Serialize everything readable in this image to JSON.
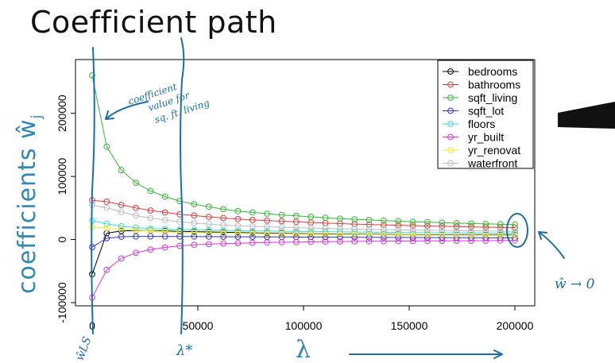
{
  "title": "Coefficient path",
  "chart_data": {
    "type": "line",
    "xlabel": "λ",
    "ylabel": "coefficients ŵ",
    "ylabel_sub": "j",
    "xlim": [
      0,
      200000
    ],
    "ylim": [
      -100000,
      260000
    ],
    "xticks": [
      0,
      50000,
      100000,
      150000,
      200000
    ],
    "xtick_labels": [
      "0",
      "50000",
      "100000",
      "150000",
      "200000"
    ],
    "yticks": [
      -100000,
      0,
      100000,
      200000
    ],
    "ytick_labels": [
      "-100000",
      "0",
      "100000",
      "200000"
    ],
    "grid": false,
    "legend_position": "top-right",
    "x": [
      0,
      6897,
      13793,
      20690,
      27586,
      34483,
      41379,
      48276,
      55172,
      62069,
      68966,
      75862,
      82759,
      89655,
      96552,
      103448,
      110345,
      117241,
      124138,
      131034,
      137931,
      144828,
      151724,
      158621,
      165517,
      172414,
      179310,
      186207,
      193103,
      200000
    ],
    "series": [
      {
        "name": "bedrooms",
        "color": "#000000",
        "values": [
          -55000,
          10000,
          13500,
          14200,
          14000,
          13500,
          13000,
          12500,
          12000,
          11500,
          11000,
          10600,
          10200,
          9800,
          9500,
          9200,
          9000,
          8700,
          8500,
          8300,
          8100,
          7900,
          7800,
          7600,
          7500,
          7400,
          7300,
          7200,
          7100,
          7000
        ]
      },
      {
        "name": "bathrooms",
        "color": "#dd3c3c",
        "values": [
          62000,
          60000,
          55000,
          50000,
          46000,
          43000,
          40000,
          38000,
          36000,
          34000,
          32500,
          31000,
          30000,
          29000,
          28000,
          27000,
          26000,
          25200,
          24500,
          23800,
          23200,
          22600,
          22000,
          21500,
          21000,
          20500,
          20000,
          19600,
          19200,
          18800
        ]
      },
      {
        "name": "sqft_living",
        "color": "#33bb33",
        "values": [
          260000,
          147000,
          110000,
          90000,
          77000,
          68000,
          61000,
          56000,
          52000,
          48000,
          45000,
          43000,
          41000,
          39000,
          37500,
          36000,
          34500,
          33000,
          32000,
          31000,
          30000,
          29000,
          28200,
          27500,
          26800,
          26000,
          25400,
          24800,
          24200,
          23700
        ]
      },
      {
        "name": "sqft_lot",
        "color": "#3333cc",
        "values": [
          -12000,
          2000,
          4500,
          5000,
          5000,
          4900,
          4800,
          4700,
          4600,
          4500,
          4400,
          4300,
          4200,
          4100,
          4000,
          3900,
          3800,
          3700,
          3600,
          3500,
          3400,
          3300,
          3200,
          3100,
          3000,
          2900,
          2800,
          2700,
          2600,
          2500
        ]
      },
      {
        "name": "floors",
        "color": "#33dddd",
        "values": [
          30000,
          25000,
          21000,
          19000,
          17500,
          16500,
          15800,
          15200,
          14800,
          14400,
          14000,
          13700,
          13400,
          13100,
          12800,
          12500,
          12300,
          12100,
          11900,
          11700,
          11500,
          11300,
          11100,
          10900,
          10700,
          10500,
          10300,
          10100,
          9900,
          9700
        ]
      },
      {
        "name": "yr_built",
        "color": "#dd33dd",
        "values": [
          -92000,
          -48000,
          -30000,
          -21000,
          -16000,
          -12500,
          -10000,
          -8500,
          -7300,
          -6500,
          -5800,
          -5200,
          -4700,
          -4300,
          -4000,
          -3700,
          -3400,
          -3200,
          -3000,
          -2800,
          -2600,
          -2400,
          -2300,
          -2200,
          -2100,
          -2000,
          -1900,
          -1800,
          -1700,
          -1600
        ]
      },
      {
        "name": "yr_renovat",
        "color": "#eeee22",
        "values": [
          20000,
          18000,
          16000,
          14500,
          13500,
          12500,
          11800,
          11200,
          10700,
          10300,
          10000,
          9600,
          9300,
          9000,
          8800,
          8500,
          8300,
          8100,
          7900,
          7700,
          7500,
          7300,
          7200,
          7000,
          6900,
          6800,
          6700,
          6600,
          6500,
          6400
        ]
      },
      {
        "name": "waterfront",
        "color": "#bbbbbb",
        "values": [
          55000,
          50000,
          44000,
          38000,
          34000,
          31000,
          28000,
          26000,
          24500,
          23000,
          22000,
          21000,
          20200,
          19500,
          18800,
          18200,
          17600,
          17100,
          16600,
          16200,
          15800,
          15400,
          15000,
          14700,
          14400,
          14100,
          13800,
          13500,
          13200,
          13000
        ]
      }
    ]
  },
  "annotations": {
    "note": [
      "coefficient",
      "value for",
      "sq. ft. living"
    ],
    "lambda_star": "λ*",
    "w_ls": "ŵLS",
    "w_to_zero": "ŵ → 0"
  }
}
